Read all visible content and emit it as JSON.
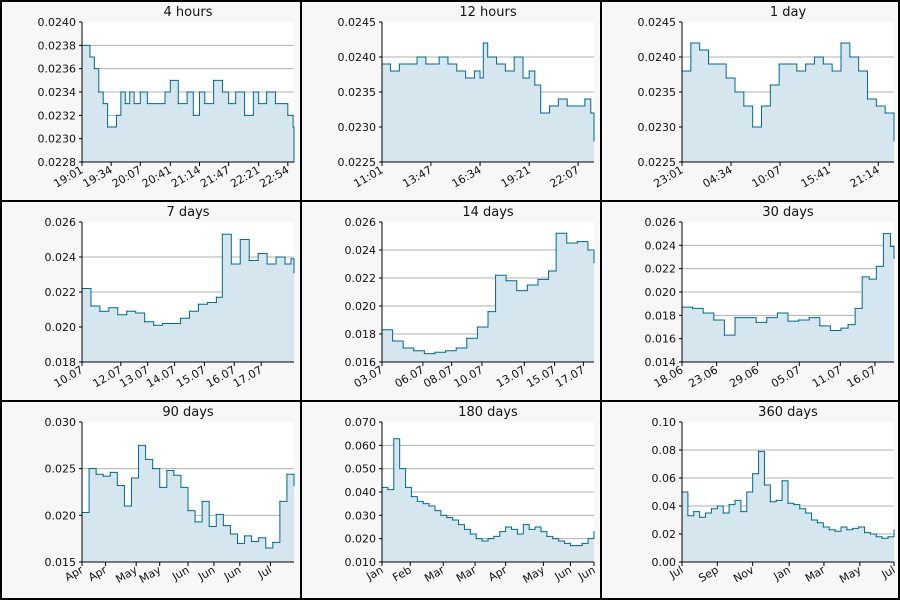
{
  "colors": {
    "line": "#006a8e",
    "fill": "#d6e6ee",
    "grid": "#b0b0b0",
    "border": "#000000",
    "panel_bg": "#f7f7f7"
  },
  "chart_data": [
    {
      "type": "area",
      "title": "4 hours",
      "x_ticks": [
        "19:01",
        "19:34",
        "20:07",
        "20:41",
        "21:14",
        "21:47",
        "22:21",
        "22:54"
      ],
      "y_ticks": [
        "0.0228",
        "0.0230",
        "0.0232",
        "0.0234",
        "0.0236",
        "0.0238",
        "0.0240"
      ],
      "ylim": [
        0.0228,
        0.024
      ],
      "grid": true,
      "x": [
        "19:01",
        "19:05",
        "19:10",
        "19:15",
        "19:20",
        "19:25",
        "19:30",
        "19:34",
        "19:40",
        "19:45",
        "19:50",
        "19:55",
        "20:00",
        "20:07",
        "20:15",
        "20:25",
        "20:35",
        "20:41",
        "20:50",
        "21:00",
        "21:07",
        "21:14",
        "21:20",
        "21:30",
        "21:40",
        "21:47",
        "21:55",
        "22:05",
        "22:15",
        "22:21",
        "22:30",
        "22:40",
        "22:50",
        "22:54",
        "23:00",
        "23:01"
      ],
      "values": [
        0.0238,
        0.0238,
        0.0237,
        0.0236,
        0.0234,
        0.0233,
        0.0231,
        0.0231,
        0.0232,
        0.0234,
        0.0233,
        0.0234,
        0.0233,
        0.0234,
        0.0233,
        0.0233,
        0.0234,
        0.0235,
        0.0233,
        0.0234,
        0.0232,
        0.0234,
        0.0233,
        0.0235,
        0.0234,
        0.0233,
        0.0234,
        0.0232,
        0.0234,
        0.0233,
        0.0234,
        0.0233,
        0.0233,
        0.0232,
        0.0231,
        0.0228
      ]
    },
    {
      "type": "area",
      "title": "12 hours",
      "x_ticks": [
        "11:01",
        "13:47",
        "16:34",
        "19:21",
        "22:07"
      ],
      "y_ticks": [
        "0.0225",
        "0.0230",
        "0.0235",
        "0.0240",
        "0.0245"
      ],
      "ylim": [
        0.0225,
        0.0245
      ],
      "grid": true,
      "x": [
        "11:01",
        "11:30",
        "12:00",
        "12:30",
        "13:00",
        "13:30",
        "13:47",
        "14:15",
        "14:45",
        "15:15",
        "15:45",
        "16:15",
        "16:34",
        "16:45",
        "17:00",
        "17:30",
        "18:00",
        "18:30",
        "19:00",
        "19:21",
        "19:40",
        "20:00",
        "20:30",
        "21:00",
        "21:30",
        "22:07",
        "22:30",
        "22:50",
        "23:01"
      ],
      "values": [
        0.0239,
        0.0238,
        0.0239,
        0.0239,
        0.024,
        0.0239,
        0.0239,
        0.024,
        0.0239,
        0.0238,
        0.0237,
        0.0238,
        0.0237,
        0.0242,
        0.024,
        0.0239,
        0.0238,
        0.024,
        0.0237,
        0.0238,
        0.0236,
        0.0232,
        0.0233,
        0.0234,
        0.0233,
        0.0233,
        0.0234,
        0.0232,
        0.0228
      ]
    },
    {
      "type": "area",
      "title": "1 day",
      "x_ticks": [
        "23:01",
        "04:34",
        "10:07",
        "15:41",
        "21:14"
      ],
      "y_ticks": [
        "0.0225",
        "0.0230",
        "0.0235",
        "0.0240",
        "0.0245"
      ],
      "ylim": [
        0.0225,
        0.0245
      ],
      "grid": true,
      "x": [
        0,
        1,
        2,
        3,
        4,
        5,
        6,
        7,
        8,
        9,
        10,
        11,
        12,
        13,
        14,
        15,
        16,
        17,
        18,
        19,
        20,
        21,
        22,
        23,
        24
      ],
      "values": [
        0.0238,
        0.0242,
        0.0241,
        0.0239,
        0.0239,
        0.0237,
        0.0235,
        0.0233,
        0.023,
        0.0233,
        0.0236,
        0.0239,
        0.0239,
        0.0238,
        0.0239,
        0.024,
        0.0239,
        0.0238,
        0.0242,
        0.024,
        0.0238,
        0.0234,
        0.0233,
        0.0232,
        0.0228
      ],
      "x_domain": [
        0,
        24
      ],
      "x_tick_positions": [
        0,
        5.55,
        11.1,
        16.67,
        22.22
      ]
    },
    {
      "type": "area",
      "title": "7 days",
      "x_ticks": [
        "10.07",
        "12.07",
        "13.07",
        "14.07",
        "15.07",
        "16.07",
        "17.07"
      ],
      "y_ticks": [
        "0.018",
        "0.020",
        "0.022",
        "0.024",
        "0.026"
      ],
      "ylim": [
        0.018,
        0.026
      ],
      "grid": true,
      "x": [
        0,
        0.3,
        0.6,
        0.9,
        1.2,
        1.5,
        1.8,
        2.1,
        2.4,
        2.7,
        3.0,
        3.3,
        3.6,
        3.9,
        4.2,
        4.5,
        4.7,
        5.0,
        5.3,
        5.6,
        5.9,
        6.2,
        6.5,
        6.8,
        7.0,
        7.1
      ],
      "values": [
        0.0222,
        0.0212,
        0.0209,
        0.0211,
        0.0207,
        0.0209,
        0.0208,
        0.0203,
        0.0201,
        0.0202,
        0.0202,
        0.0205,
        0.0209,
        0.0213,
        0.0214,
        0.0217,
        0.0253,
        0.0236,
        0.025,
        0.0238,
        0.0242,
        0.0236,
        0.024,
        0.0236,
        0.0239,
        0.0231
      ],
      "x_domain": [
        0,
        7.1
      ],
      "x_tick_positions": [
        0,
        1.3,
        2.2,
        3.1,
        4.1,
        5.1,
        6.0
      ]
    },
    {
      "type": "area",
      "title": "14 days",
      "x_ticks": [
        "03.07",
        "06.07",
        "08.07",
        "10.07",
        "13.07",
        "15.07",
        "17.07"
      ],
      "y_ticks": [
        "0.016",
        "0.018",
        "0.020",
        "0.022",
        "0.024",
        "0.026"
      ],
      "ylim": [
        0.016,
        0.026
      ],
      "grid": true,
      "x": [
        0,
        0.7,
        1.4,
        2.1,
        2.8,
        3.5,
        4.2,
        4.9,
        5.6,
        6.3,
        7.0,
        7.5,
        8.2,
        8.9,
        9.6,
        10.3,
        11.0,
        11.5,
        12.2,
        12.9,
        13.6,
        14.0
      ],
      "values": [
        0.0183,
        0.0175,
        0.017,
        0.0168,
        0.0166,
        0.0167,
        0.0168,
        0.017,
        0.0177,
        0.0185,
        0.0196,
        0.0222,
        0.0218,
        0.0211,
        0.0215,
        0.0219,
        0.0225,
        0.0252,
        0.0245,
        0.0246,
        0.024,
        0.0231
      ],
      "x_domain": [
        0,
        14.0
      ],
      "x_tick_positions": [
        0,
        2.7,
        4.6,
        6.6,
        9.4,
        11.4,
        13.3
      ]
    },
    {
      "type": "area",
      "title": "30 days",
      "x_ticks": [
        "18.06",
        "23.06",
        "29.06",
        "05.07",
        "11.07",
        "16.07"
      ],
      "y_ticks": [
        "0.014",
        "0.016",
        "0.018",
        "0.020",
        "0.022",
        "0.024",
        "0.026"
      ],
      "ylim": [
        0.014,
        0.026
      ],
      "grid": true,
      "x": [
        0,
        1.5,
        3,
        4.5,
        6,
        7.5,
        9,
        10.5,
        12,
        13.5,
        15,
        16.5,
        18,
        19.5,
        21,
        22.5,
        23.5,
        24.5,
        25.5,
        26.5,
        27.5,
        28.5,
        29.5,
        30
      ],
      "values": [
        0.0187,
        0.0186,
        0.0182,
        0.0176,
        0.0163,
        0.0178,
        0.0178,
        0.0174,
        0.0178,
        0.0182,
        0.0175,
        0.0176,
        0.0178,
        0.0171,
        0.0167,
        0.0169,
        0.0172,
        0.0186,
        0.0213,
        0.0211,
        0.0222,
        0.025,
        0.0239,
        0.0229
      ],
      "x_domain": [
        0,
        30
      ],
      "x_tick_positions": [
        0,
        4.9,
        10.7,
        16.6,
        22.4,
        27.3
      ]
    },
    {
      "type": "area",
      "title": "90 days",
      "x_ticks": [
        "Apr",
        "Apr",
        "May",
        "May",
        "Jun",
        "Jun",
        "Jun",
        "Jul"
      ],
      "y_ticks": [
        "0.015",
        "0.020",
        "0.025",
        "0.030"
      ],
      "ylim": [
        0.015,
        0.03
      ],
      "grid": true,
      "x": [
        0,
        3,
        6,
        9,
        12,
        15,
        18,
        21,
        24,
        27,
        30,
        33,
        36,
        39,
        42,
        45,
        48,
        51,
        54,
        57,
        60,
        63,
        66,
        69,
        72,
        75,
        78,
        81,
        84,
        87,
        90
      ],
      "values": [
        0.0203,
        0.025,
        0.0244,
        0.0242,
        0.0246,
        0.0232,
        0.021,
        0.024,
        0.0275,
        0.026,
        0.025,
        0.023,
        0.0248,
        0.0243,
        0.023,
        0.0205,
        0.0193,
        0.0215,
        0.0188,
        0.0201,
        0.0189,
        0.018,
        0.017,
        0.0178,
        0.0172,
        0.0176,
        0.0165,
        0.0171,
        0.0215,
        0.0244,
        0.0232
      ],
      "x_domain": [
        0,
        90
      ],
      "x_tick_positions": [
        0,
        10,
        23,
        33,
        45,
        56,
        67,
        80
      ]
    },
    {
      "type": "area",
      "title": "180 days",
      "x_ticks": [
        "Jan",
        "Feb",
        "Mar",
        "Mar",
        "Apr",
        "May",
        "Jun",
        "Jun"
      ],
      "y_ticks": [
        "0.010",
        "0.020",
        "0.030",
        "0.040",
        "0.050",
        "0.060",
        "0.070"
      ],
      "ylim": [
        0.01,
        0.07
      ],
      "grid": true,
      "x": [
        0,
        5,
        10,
        15,
        20,
        25,
        30,
        35,
        40,
        45,
        50,
        55,
        60,
        65,
        70,
        75,
        80,
        85,
        90,
        95,
        100,
        105,
        110,
        115,
        120,
        125,
        130,
        135,
        140,
        145,
        150,
        155,
        160,
        165,
        170,
        175,
        180
      ],
      "values": [
        0.042,
        0.041,
        0.0628,
        0.05,
        0.042,
        0.038,
        0.036,
        0.035,
        0.034,
        0.032,
        0.03,
        0.029,
        0.028,
        0.026,
        0.024,
        0.022,
        0.02,
        0.019,
        0.02,
        0.021,
        0.023,
        0.025,
        0.024,
        0.022,
        0.026,
        0.024,
        0.025,
        0.023,
        0.021,
        0.02,
        0.019,
        0.018,
        0.017,
        0.017,
        0.018,
        0.02,
        0.023
      ],
      "x_domain": [
        0,
        180
      ],
      "x_tick_positions": [
        0,
        24,
        52,
        79,
        105,
        137,
        160,
        195
      ]
    },
    {
      "type": "area",
      "title": "360 days",
      "x_ticks": [
        "Jul",
        "Sep",
        "Nov",
        "Jan",
        "Mar",
        "May",
        "Jul"
      ],
      "y_ticks": [
        "0.00",
        "0.02",
        "0.04",
        "0.06",
        "0.08",
        "0.10"
      ],
      "ylim": [
        0.0,
        0.1
      ],
      "grid": true,
      "x": [
        0,
        10,
        20,
        30,
        40,
        50,
        60,
        70,
        80,
        90,
        100,
        110,
        120,
        130,
        140,
        150,
        160,
        170,
        180,
        190,
        200,
        210,
        220,
        230,
        240,
        250,
        260,
        270,
        280,
        290,
        300,
        310,
        320,
        330,
        340,
        350,
        360
      ],
      "values": [
        0.05,
        0.033,
        0.036,
        0.032,
        0.035,
        0.038,
        0.04,
        0.035,
        0.041,
        0.044,
        0.036,
        0.05,
        0.063,
        0.079,
        0.055,
        0.043,
        0.044,
        0.058,
        0.042,
        0.041,
        0.038,
        0.035,
        0.03,
        0.028,
        0.025,
        0.023,
        0.022,
        0.025,
        0.023,
        0.024,
        0.025,
        0.021,
        0.02,
        0.018,
        0.017,
        0.018,
        0.023
      ],
      "x_domain": [
        0,
        360
      ],
      "x_tick_positions": [
        0,
        60,
        120,
        182,
        241,
        302,
        362
      ]
    }
  ]
}
